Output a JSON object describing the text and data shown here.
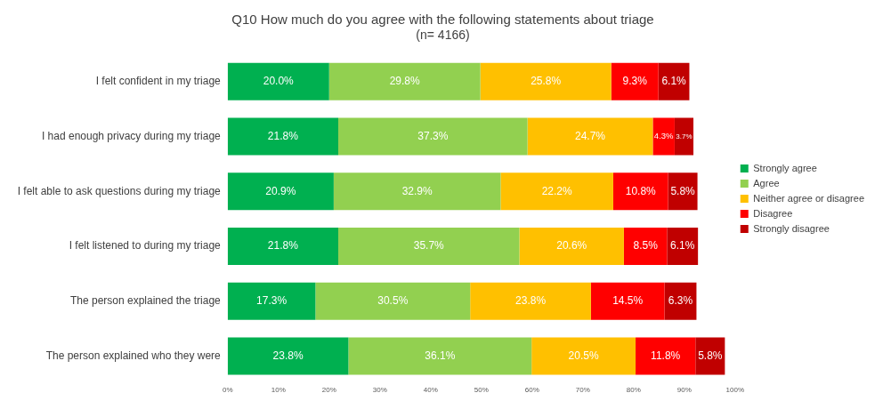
{
  "chart_data": {
    "type": "bar",
    "orientation": "horizontal",
    "stacked": true,
    "title": "Q10 How much do you agree with the following statements about triage",
    "subtitle": "(n= 4166)",
    "categories": [
      "I felt confident in my triage",
      "I had enough privacy during my triage",
      "I felt able to ask questions during my triage",
      "I felt listened to during my triage",
      "The person explained the triage",
      "The person explained who they were"
    ],
    "series": [
      {
        "name": "Strongly agree",
        "color": "#00b050",
        "values": [
          20.0,
          21.8,
          20.9,
          21.8,
          17.3,
          23.8
        ],
        "value_labels": [
          "20.0%",
          "21.8%",
          "20.9%",
          "21.8%",
          "17.3%",
          "23.8%"
        ]
      },
      {
        "name": "Agree",
        "color": "#92d050",
        "values": [
          29.8,
          37.3,
          32.9,
          35.7,
          30.5,
          36.1
        ],
        "value_labels": [
          "29.8%",
          "37.3%",
          "32.9%",
          "35.7%",
          "30.5%",
          "36.1%"
        ]
      },
      {
        "name": "Neither agree or disagree",
        "color": "#ffc000",
        "values": [
          25.8,
          24.7,
          22.2,
          20.6,
          23.8,
          20.5
        ],
        "value_labels": [
          "25.8%",
          "24.7%",
          "22.2%",
          "20.6%",
          "23.8%",
          "20.5%"
        ]
      },
      {
        "name": "Disagree",
        "color": "#ff0000",
        "values": [
          9.3,
          4.3,
          10.8,
          8.5,
          14.5,
          11.8
        ],
        "value_labels": [
          "9.3%",
          "4.3%",
          "10.8%",
          "8.5%",
          "14.5%",
          "11.8%"
        ]
      },
      {
        "name": "Strongly disagree",
        "color": "#c00000",
        "values": [
          6.1,
          3.7,
          5.8,
          6.1,
          6.3,
          5.8
        ],
        "value_labels": [
          "6.1%",
          "3.7%",
          "5.8%",
          "6.1%",
          "6.3%",
          "5.8%"
        ]
      }
    ],
    "xlim": [
      0,
      100
    ],
    "xticks": [
      {
        "value": 0,
        "label": "0%"
      },
      {
        "value": 10,
        "label": "10%"
      },
      {
        "value": 20,
        "label": "20%"
      },
      {
        "value": 30,
        "label": "30%"
      },
      {
        "value": 40,
        "label": "40%"
      },
      {
        "value": 50,
        "label": "50%"
      },
      {
        "value": 60,
        "label": "60%"
      },
      {
        "value": 70,
        "label": "70%"
      },
      {
        "value": 80,
        "label": "80%"
      },
      {
        "value": 90,
        "label": "90%"
      },
      {
        "value": 100,
        "label": "100%"
      }
    ],
    "grid": false,
    "legend": "right"
  }
}
